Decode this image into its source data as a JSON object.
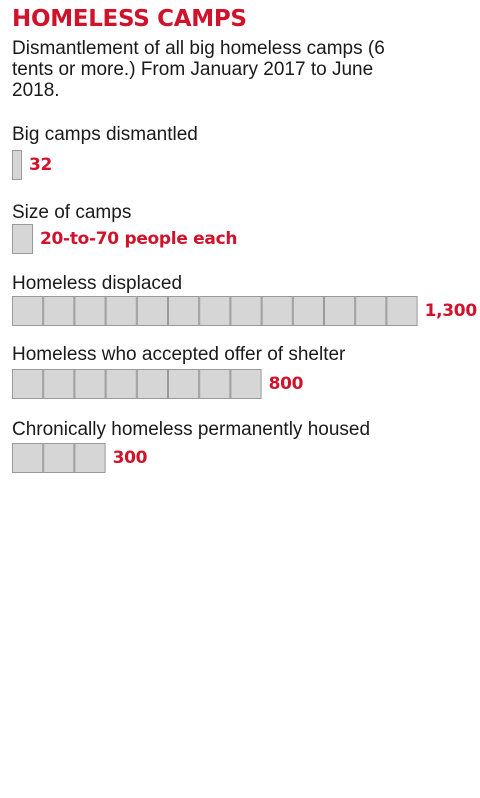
{
  "header": {
    "title": "HOMELESS CAMPS",
    "subtitle": "Dismantlement of all big homeless camps (6 tents or more.) From January 2017 to June 2018."
  },
  "colors": {
    "accent": "#d0122a",
    "bar_fill": "#d6d6d6",
    "bar_stroke": "#9a9a9a",
    "text": "#1a1a1a"
  },
  "chart_data": {
    "type": "bar",
    "orientation": "horizontal",
    "unit_per_block": 100,
    "categories": [
      "Big camps dismantled",
      "Size of camps",
      "Homeless displaced",
      "Homeless who accepted offer of shelter",
      "Chronically homeless permanently housed"
    ],
    "values": [
      32,
      null,
      1300,
      800,
      300
    ],
    "value_labels": [
      "32",
      "20-to-70 people each",
      "1,300",
      "800",
      "300"
    ]
  }
}
